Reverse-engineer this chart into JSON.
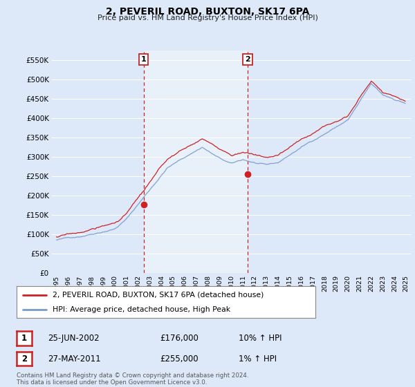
{
  "title": "2, PEVERIL ROAD, BUXTON, SK17 6PA",
  "subtitle": "Price paid vs. HM Land Registry's House Price Index (HPI)",
  "ytick_values": [
    0,
    50000,
    100000,
    150000,
    200000,
    250000,
    300000,
    350000,
    400000,
    450000,
    500000,
    550000
  ],
  "xlim_start": 1994.6,
  "xlim_end": 2025.4,
  "ylim": [
    0,
    575000
  ],
  "background_color": "#dde8f8",
  "plot_bg_color": "#dde8f8",
  "shade_color": "#c8d8ee",
  "grid_color": "#ffffff",
  "sale1_x": 2002.48,
  "sale1_price": 176000,
  "sale2_x": 2011.4,
  "sale2_price": 255000,
  "legend_line1": "2, PEVERIL ROAD, BUXTON, SK17 6PA (detached house)",
  "legend_line2": "HPI: Average price, detached house, High Peak",
  "table_row1": [
    "1",
    "25-JUN-2002",
    "£176,000",
    "10% ↑ HPI"
  ],
  "table_row2": [
    "2",
    "27-MAY-2011",
    "£255,000",
    "1% ↑ HPI"
  ],
  "footer": "Contains HM Land Registry data © Crown copyright and database right 2024.\nThis data is licensed under the Open Government Licence v3.0.",
  "hpi_color": "#7799cc",
  "price_color": "#cc2222",
  "vline_color": "#cc2222",
  "shade_alpha": 0.35
}
